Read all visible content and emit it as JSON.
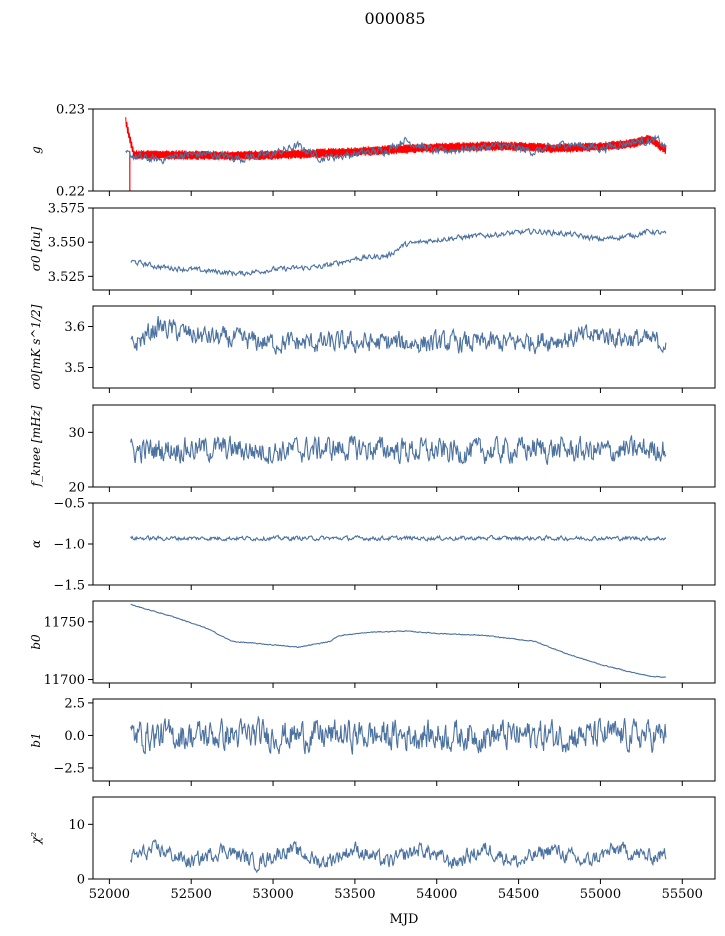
{
  "figure": {
    "title": "000085",
    "xlabel": "MJD",
    "xticks": [
      52000,
      52500,
      53000,
      53500,
      54000,
      54500,
      55000,
      55500
    ],
    "xlim": [
      51900,
      55700
    ]
  },
  "colors": {
    "series": "#4c72a0",
    "model": "#ff0000"
  },
  "chart_data": [
    {
      "type": "line",
      "id": "g",
      "ylabel": "g",
      "ylim": [
        0.22,
        0.23
      ],
      "yticks": [
        0.22,
        0.23
      ],
      "ytick_labels": [
        "0.22",
        "0.23"
      ],
      "series": [
        {
          "style": "fit",
          "x": [
            52100,
            52150,
            52300,
            52500,
            52700,
            53000,
            53300,
            53600,
            54000,
            54400,
            54700,
            55000,
            55200,
            55300,
            55400
          ],
          "values": [
            0.2285,
            0.2244,
            0.2244,
            0.2244,
            0.2243,
            0.2244,
            0.2246,
            0.2249,
            0.2253,
            0.2255,
            0.2252,
            0.2254,
            0.2258,
            0.2264,
            0.225
          ],
          "band": 0.0006
        },
        {
          "x": [
            52100,
            52200,
            52300,
            52450,
            52600,
            52800,
            53000,
            53150,
            53300,
            53500,
            53700,
            53800,
            54000,
            54200,
            54400,
            54600,
            54800,
            55000,
            55200,
            55350,
            55400
          ],
          "values": [
            0.2245,
            0.224,
            0.2238,
            0.2244,
            0.2245,
            0.224,
            0.2245,
            0.2255,
            0.224,
            0.2245,
            0.225,
            0.2262,
            0.2248,
            0.2252,
            0.2255,
            0.2248,
            0.2258,
            0.2252,
            0.226,
            0.2262,
            0.2252
          ],
          "noise": 0.0008
        }
      ]
    },
    {
      "type": "line",
      "id": "sigma0-du",
      "ylabel": "σ0 [du]",
      "ylim": [
        3.515,
        3.575
      ],
      "yticks": [
        3.525,
        3.55,
        3.575
      ],
      "ytick_labels": [
        "3.525",
        "3.550",
        "3.575"
      ],
      "series": [
        {
          "x": [
            52130,
            52300,
            52600,
            52800,
            53000,
            53300,
            53500,
            53700,
            53800,
            54000,
            54200,
            54400,
            54600,
            54800,
            55000,
            55200,
            55300,
            55400
          ],
          "values": [
            3.536,
            3.532,
            3.529,
            3.527,
            3.53,
            3.532,
            3.538,
            3.54,
            3.548,
            3.552,
            3.554,
            3.556,
            3.558,
            3.556,
            3.552,
            3.555,
            3.558,
            3.556
          ],
          "noise": 0.003
        }
      ]
    },
    {
      "type": "line",
      "id": "sigma0-mk",
      "ylabel": "σ0[mK s^1/2]",
      "ylim": [
        3.45,
        3.65
      ],
      "yticks": [
        3.5,
        3.6
      ],
      "ytick_labels": [
        "3.5",
        "3.6"
      ],
      "series": [
        {
          "x": [
            52130,
            52300,
            52500,
            52700,
            53000,
            53300,
            53600,
            54000,
            54400,
            54800,
            55000,
            55200,
            55400
          ],
          "values": [
            3.55,
            3.6,
            3.58,
            3.57,
            3.56,
            3.56,
            3.56,
            3.56,
            3.56,
            3.57,
            3.58,
            3.57,
            3.56
          ],
          "noise": 0.04
        }
      ]
    },
    {
      "type": "line",
      "id": "fknee",
      "ylabel": "f_knee [mHz]",
      "ylim": [
        20,
        35
      ],
      "yticks": [
        20,
        30
      ],
      "ytick_labels": [
        "20",
        "30"
      ],
      "series": [
        {
          "x": [
            52130,
            52400,
            52700,
            53000,
            53300,
            53600,
            54000,
            54300,
            54600,
            55000,
            55400
          ],
          "values": [
            26.5,
            27,
            27,
            26.5,
            27,
            27,
            26.5,
            26.5,
            27,
            26.5,
            27
          ],
          "noise": 3.5
        }
      ]
    },
    {
      "type": "line",
      "id": "alpha",
      "ylabel": "α",
      "ylim": [
        -1.5,
        -0.5
      ],
      "yticks": [
        -1.5,
        -1.0,
        -0.5
      ],
      "ytick_labels": [
        "−1.5",
        "−1.0",
        "−0.5"
      ],
      "series": [
        {
          "x": [
            52130,
            55400
          ],
          "values": [
            -0.93,
            -0.93
          ],
          "noise": 0.04
        }
      ]
    },
    {
      "type": "line",
      "id": "b0",
      "ylabel": "b0",
      "ylim": [
        11697,
        11768
      ],
      "yticks": [
        11700,
        11750
      ],
      "ytick_labels": [
        "11700",
        "11750"
      ],
      "series": [
        {
          "x": [
            52130,
            52200,
            52400,
            52600,
            52750,
            53000,
            53150,
            53350,
            53400,
            53600,
            53800,
            54000,
            54300,
            54600,
            54800,
            55000,
            55200,
            55300,
            55400
          ],
          "values": [
            11765,
            11762,
            11754,
            11744,
            11733,
            11730,
            11728,
            11733,
            11738,
            11741,
            11742,
            11740,
            11738,
            11733,
            11722,
            11713,
            11706,
            11703,
            11702
          ],
          "noise": 0.6
        }
      ]
    },
    {
      "type": "line",
      "id": "b1",
      "ylabel": "b1",
      "ylim": [
        -3.5,
        2.8
      ],
      "yticks": [
        -2.5,
        0.0,
        2.5
      ],
      "ytick_labels": [
        "−2.5",
        "0.0",
        "2.5"
      ],
      "series": [
        {
          "x": [
            52130,
            55400
          ],
          "values": [
            0.0,
            0.0
          ],
          "noise": 1.8
        }
      ]
    },
    {
      "type": "line",
      "id": "chi2",
      "ylabel": "χ²",
      "ylim": [
        0,
        15
      ],
      "yticks": [
        0,
        10
      ],
      "ytick_labels": [
        "0",
        "10"
      ],
      "series": [
        {
          "x": [
            52130,
            52300,
            52500,
            52700,
            52900,
            53100,
            53300,
            53500,
            53700,
            53900,
            54100,
            54300,
            54500,
            54700,
            54900,
            55100,
            55300,
            55400
          ],
          "values": [
            4,
            5.5,
            3,
            5.5,
            3,
            5.5,
            3,
            5.5,
            3,
            5.5,
            3,
            5.5,
            3,
            5.5,
            3,
            5.5,
            4,
            4.5
          ],
          "noise": 2.2
        }
      ]
    }
  ]
}
